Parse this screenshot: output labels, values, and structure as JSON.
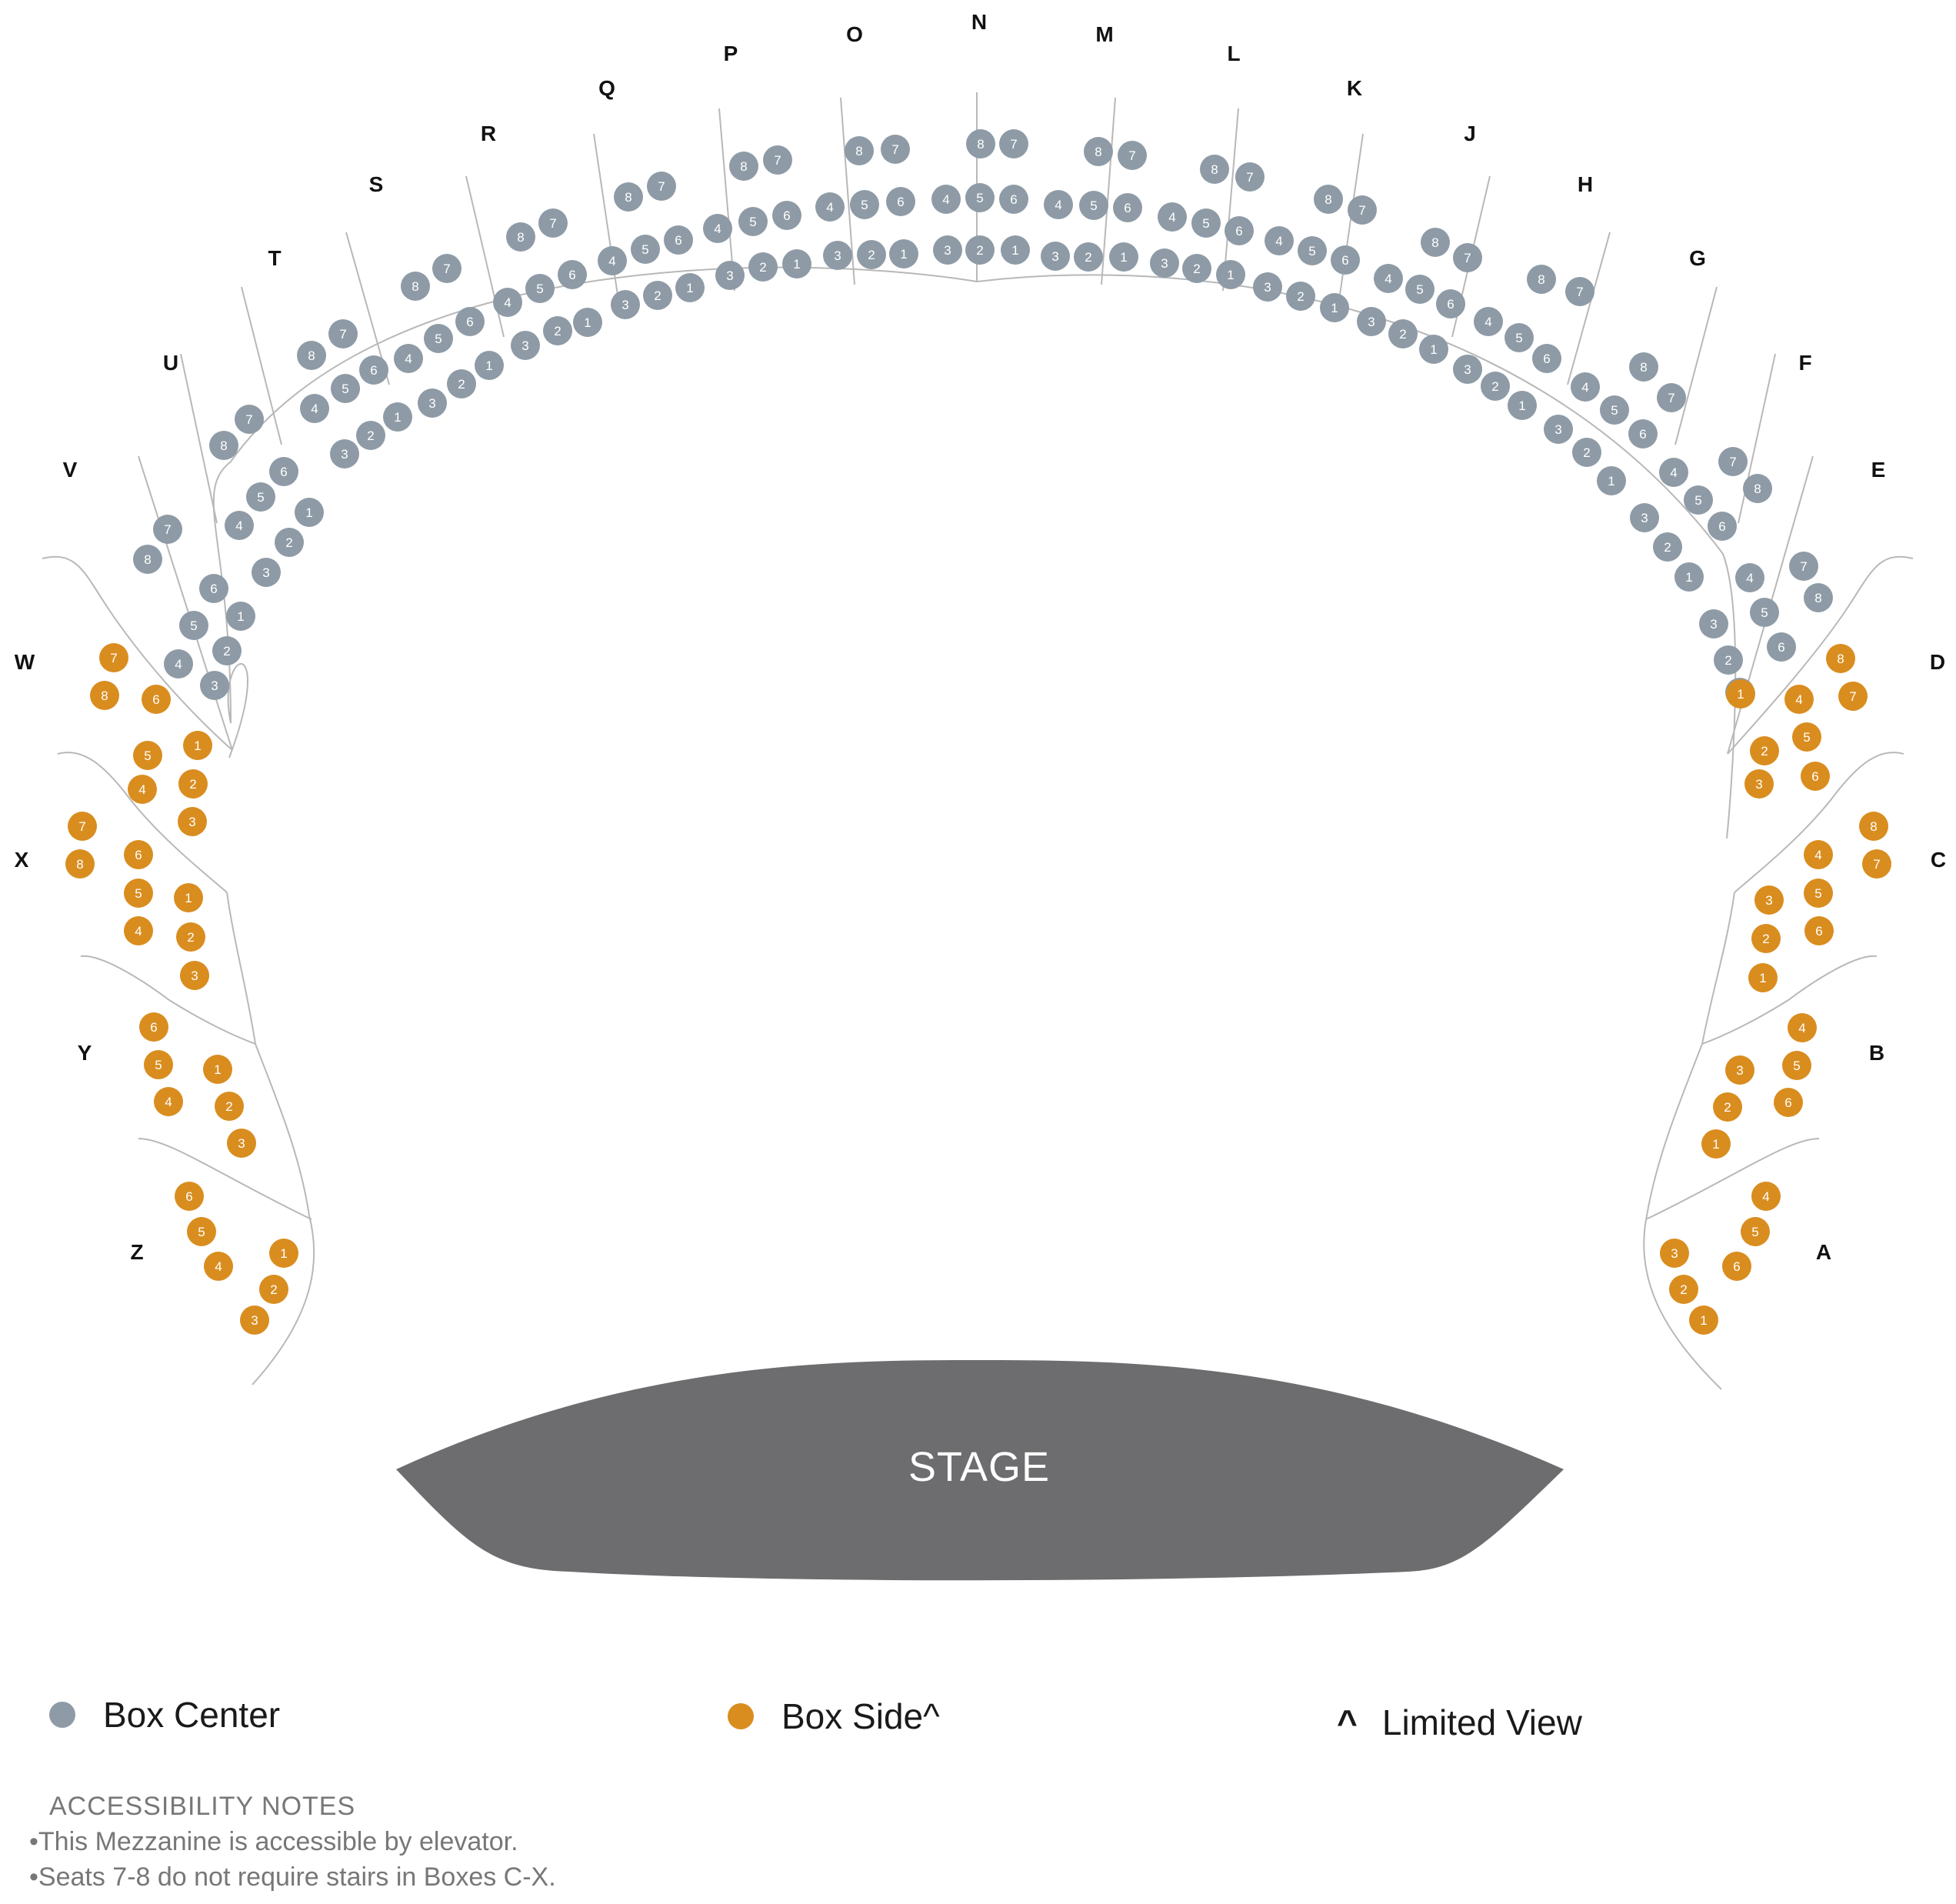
{
  "colors": {
    "box_center": "#8e9ba6",
    "box_side": "#d98d1f",
    "stage": "#6d6c6e"
  },
  "stage": {
    "label": "STAGE"
  },
  "center_boxes": [
    "N",
    "O",
    "P",
    "Q",
    "R",
    "S",
    "T",
    "U",
    "V",
    "M",
    "L",
    "K",
    "J",
    "H",
    "G",
    "F",
    "E"
  ],
  "side_boxes": [
    "W",
    "X",
    "Y",
    "Z",
    "D",
    "C",
    "B",
    "A"
  ],
  "center_box_seats": [
    "1",
    "2",
    "3",
    "4",
    "5",
    "6",
    "7",
    "8"
  ],
  "side_box_seats_8": [
    "1",
    "2",
    "3",
    "4",
    "5",
    "6",
    "7",
    "8"
  ],
  "side_box_seats_6": [
    "1",
    "2",
    "3",
    "4",
    "5",
    "6"
  ],
  "legend": {
    "center_label": "Box Center",
    "side_label": "Box Side^",
    "limited_symbol": "^",
    "limited_label": "Limited View"
  },
  "notes": {
    "heading": "ACCESSIBILITY NOTES",
    "items": [
      "This Mezzanine is accessible by elevator.",
      "Seats 7-8 do not require stairs in Boxes C-X."
    ]
  }
}
